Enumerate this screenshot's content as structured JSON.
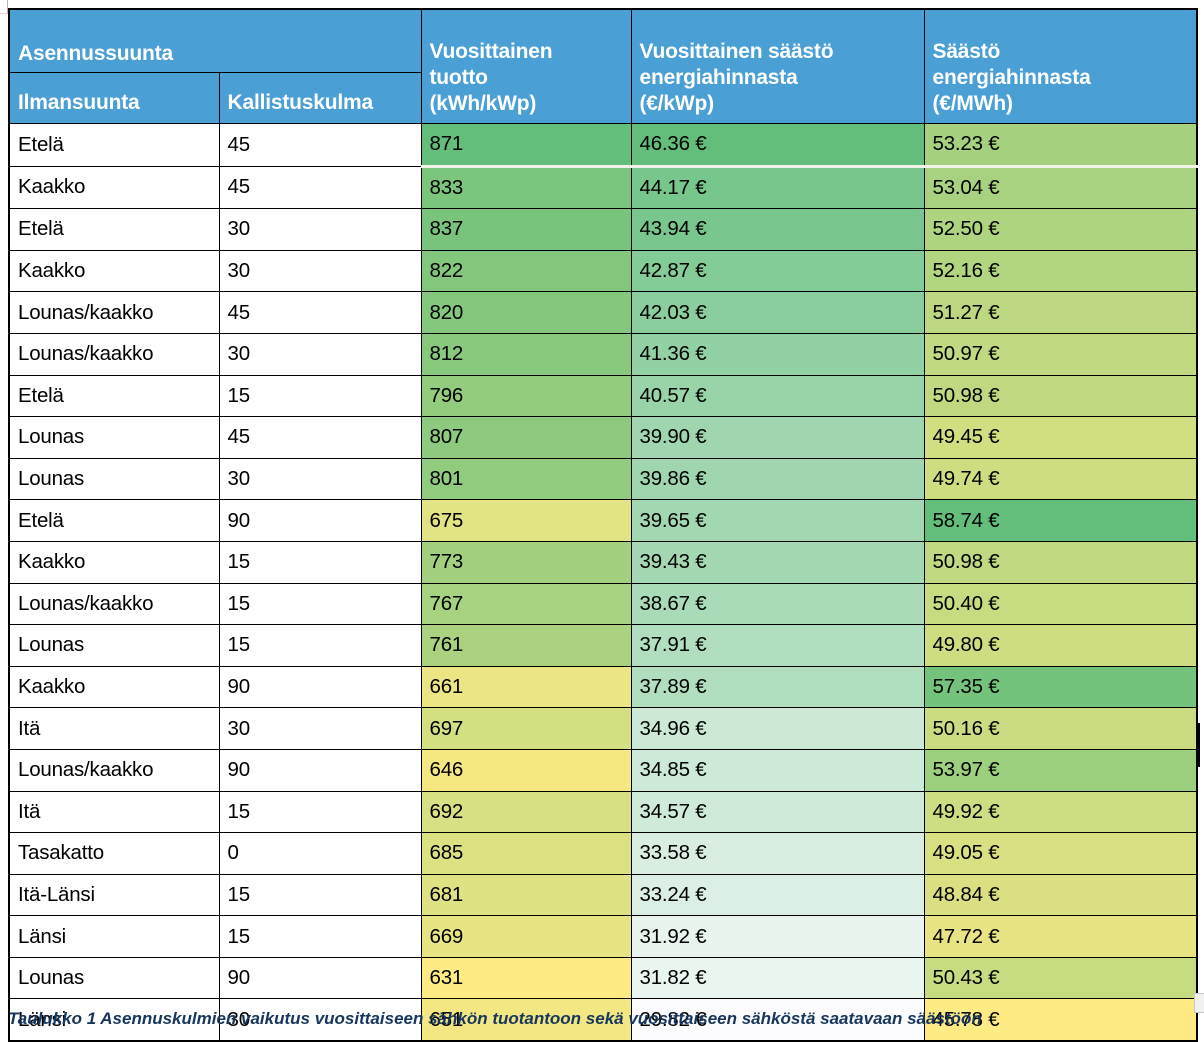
{
  "page": {
    "caption": "Taulukko 1 Asennuskulmien vaikutus vuosittaiseen sähkön tuotantoon sekä vuosittaiseen sähköstä saatavaan säästöön"
  },
  "colors": {
    "header_bg": "#4A9FD4",
    "header_text": "#FFFFFF",
    "border": "#000000",
    "scale_green": "#63BE7B",
    "scale_yellow": "#FFEB84",
    "scale_white": "#FCFCFF",
    "freeze_line": "#F2F2EA"
  },
  "table": {
    "group_header": "Asennussuunta",
    "columns": [
      {
        "key": "suunta",
        "label": "Ilmansuunta"
      },
      {
        "key": "kulma",
        "label": "Kallistuskulma"
      },
      {
        "key": "tuotto",
        "label_lines": [
          "Vuosittainen",
          "tuotto",
          "(kWh/kWp)"
        ]
      },
      {
        "key": "saasto_kwp",
        "label_lines": [
          "Vuosittainen säästö",
          "energiahinnasta",
          "(€/kWp)"
        ]
      },
      {
        "key": "saasto_mwh",
        "label_lines": [
          "Säästö",
          "energiahinnasta",
          "(€/MWh)"
        ]
      }
    ],
    "money_suffix": " €",
    "scales": {
      "tuotto": {
        "min": 631,
        "max": 871,
        "from": "#FFEB84",
        "to": "#63BE7B"
      },
      "saasto_kwp": {
        "min": 29.82,
        "max": 46.36,
        "from": "#FCFCFF",
        "to": "#63BE7B"
      },
      "saasto_mwh": {
        "min": 45.78,
        "max": 58.74,
        "from": "#FFEB84",
        "to": "#63BE7B"
      }
    },
    "rows": [
      {
        "suunta": "Etelä",
        "kulma": 45,
        "tuotto": 871,
        "saasto_kwp": 46.36,
        "saasto_mwh": 53.23
      },
      {
        "suunta": "Kaakko",
        "kulma": 45,
        "tuotto": 833,
        "saasto_kwp": 44.17,
        "saasto_mwh": 53.04
      },
      {
        "suunta": "Etelä",
        "kulma": 30,
        "tuotto": 837,
        "saasto_kwp": 43.94,
        "saasto_mwh": 52.5
      },
      {
        "suunta": "Kaakko",
        "kulma": 30,
        "tuotto": 822,
        "saasto_kwp": 42.87,
        "saasto_mwh": 52.16
      },
      {
        "suunta": "Lounas/kaakko",
        "kulma": 45,
        "tuotto": 820,
        "saasto_kwp": 42.03,
        "saasto_mwh": 51.27
      },
      {
        "suunta": "Lounas/kaakko",
        "kulma": 30,
        "tuotto": 812,
        "saasto_kwp": 41.36,
        "saasto_mwh": 50.97
      },
      {
        "suunta": "Etelä",
        "kulma": 15,
        "tuotto": 796,
        "saasto_kwp": 40.57,
        "saasto_mwh": 50.98
      },
      {
        "suunta": "Lounas",
        "kulma": 45,
        "tuotto": 807,
        "saasto_kwp": 39.9,
        "saasto_mwh": 49.45
      },
      {
        "suunta": "Lounas",
        "kulma": 30,
        "tuotto": 801,
        "saasto_kwp": 39.86,
        "saasto_mwh": 49.74
      },
      {
        "suunta": "Etelä",
        "kulma": 90,
        "tuotto": 675,
        "saasto_kwp": 39.65,
        "saasto_mwh": 58.74
      },
      {
        "suunta": "Kaakko",
        "kulma": 15,
        "tuotto": 773,
        "saasto_kwp": 39.43,
        "saasto_mwh": 50.98
      },
      {
        "suunta": "Lounas/kaakko",
        "kulma": 15,
        "tuotto": 767,
        "saasto_kwp": 38.67,
        "saasto_mwh": 50.4
      },
      {
        "suunta": "Lounas",
        "kulma": 15,
        "tuotto": 761,
        "saasto_kwp": 37.91,
        "saasto_mwh": 49.8
      },
      {
        "suunta": "Kaakko",
        "kulma": 90,
        "tuotto": 661,
        "saasto_kwp": 37.89,
        "saasto_mwh": 57.35
      },
      {
        "suunta": "Itä",
        "kulma": 30,
        "tuotto": 697,
        "saasto_kwp": 34.96,
        "saasto_mwh": 50.16
      },
      {
        "suunta": "Lounas/kaakko",
        "kulma": 90,
        "tuotto": 646,
        "saasto_kwp": 34.85,
        "saasto_mwh": 53.97
      },
      {
        "suunta": "Itä",
        "kulma": 15,
        "tuotto": 692,
        "saasto_kwp": 34.57,
        "saasto_mwh": 49.92
      },
      {
        "suunta": "Tasakatto",
        "kulma": 0,
        "tuotto": 685,
        "saasto_kwp": 33.58,
        "saasto_mwh": 49.05
      },
      {
        "suunta": "Itä-Länsi",
        "kulma": 15,
        "tuotto": 681,
        "saasto_kwp": 33.24,
        "saasto_mwh": 48.84
      },
      {
        "suunta": "Länsi",
        "kulma": 15,
        "tuotto": 669,
        "saasto_kwp": 31.92,
        "saasto_mwh": 47.72
      },
      {
        "suunta": "Lounas",
        "kulma": 90,
        "tuotto": 631,
        "saasto_kwp": 31.82,
        "saasto_mwh": 50.43
      },
      {
        "suunta": "Länsi",
        "kulma": 30,
        "tuotto": 651,
        "saasto_kwp": 29.82,
        "saasto_mwh": 45.78
      }
    ]
  },
  "chart_data": {
    "type": "table",
    "title": "Asennussuunta",
    "columns": [
      "Ilmansuunta",
      "Kallistuskulma",
      "Vuosittainen tuotto (kWh/kWp)",
      "Vuosittainen säästö energiahinnasta (€/kWp)",
      "Säästö energiahinnasta (€/MWh)"
    ],
    "rows": [
      [
        "Etelä",
        45,
        871,
        46.36,
        53.23
      ],
      [
        "Kaakko",
        45,
        833,
        44.17,
        53.04
      ],
      [
        "Etelä",
        30,
        837,
        43.94,
        52.5
      ],
      [
        "Kaakko",
        30,
        822,
        42.87,
        52.16
      ],
      [
        "Lounas/kaakko",
        45,
        820,
        42.03,
        51.27
      ],
      [
        "Lounas/kaakko",
        30,
        812,
        41.36,
        50.97
      ],
      [
        "Etelä",
        15,
        796,
        40.57,
        50.98
      ],
      [
        "Lounas",
        45,
        807,
        39.9,
        49.45
      ],
      [
        "Lounas",
        30,
        801,
        39.86,
        49.74
      ],
      [
        "Etelä",
        90,
        675,
        39.65,
        58.74
      ],
      [
        "Kaakko",
        15,
        773,
        39.43,
        50.98
      ],
      [
        "Lounas/kaakko",
        15,
        767,
        38.67,
        50.4
      ],
      [
        "Lounas",
        15,
        761,
        37.91,
        49.8
      ],
      [
        "Kaakko",
        90,
        661,
        37.89,
        57.35
      ],
      [
        "Itä",
        30,
        697,
        34.96,
        50.16
      ],
      [
        "Lounas/kaakko",
        90,
        646,
        34.85,
        53.97
      ],
      [
        "Itä",
        15,
        692,
        34.57,
        49.92
      ],
      [
        "Tasakatto",
        0,
        685,
        33.58,
        49.05
      ],
      [
        "Itä-Länsi",
        15,
        681,
        33.24,
        48.84
      ],
      [
        "Länsi",
        15,
        669,
        31.92,
        47.72
      ],
      [
        "Lounas",
        90,
        631,
        31.82,
        50.43
      ],
      [
        "Länsi",
        30,
        651,
        29.82,
        45.78
      ]
    ]
  }
}
